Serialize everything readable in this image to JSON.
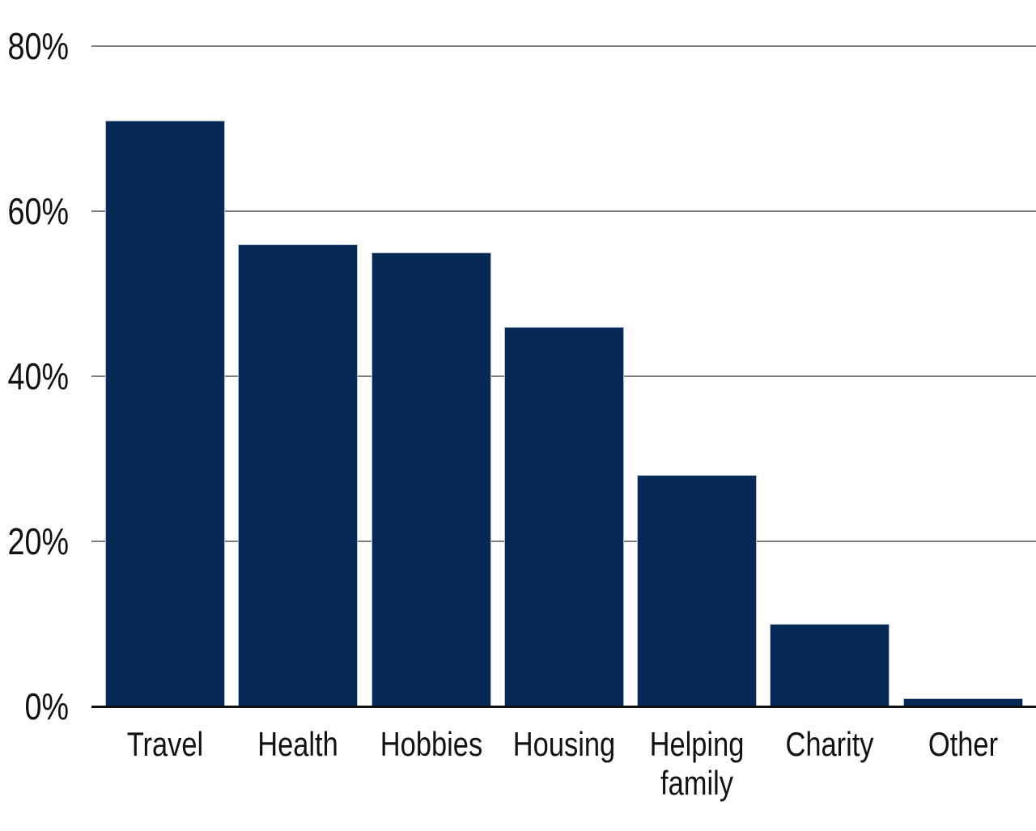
{
  "chart_data": {
    "type": "bar",
    "title": "",
    "xlabel": "",
    "ylabel": "",
    "categories": [
      "Travel",
      "Health",
      "Hobbies",
      "Housing",
      "Helping family",
      "Charity",
      "Other"
    ],
    "values": [
      71,
      56,
      55,
      46,
      28,
      10,
      1
    ],
    "ylim": [
      0,
      80
    ],
    "yticks": [
      0,
      20,
      40,
      60,
      80
    ],
    "ytick_labels": [
      "0%",
      "20%",
      "40%",
      "60%",
      "80%"
    ],
    "grid": "horizontal",
    "legend": "none",
    "colors": {
      "bar_fill": "#062a55",
      "bar_edge": "#b3bfce",
      "gridline": "#7f7f7f",
      "axis_line": "#111111",
      "text": "#111111",
      "background": "#ffffff"
    }
  }
}
